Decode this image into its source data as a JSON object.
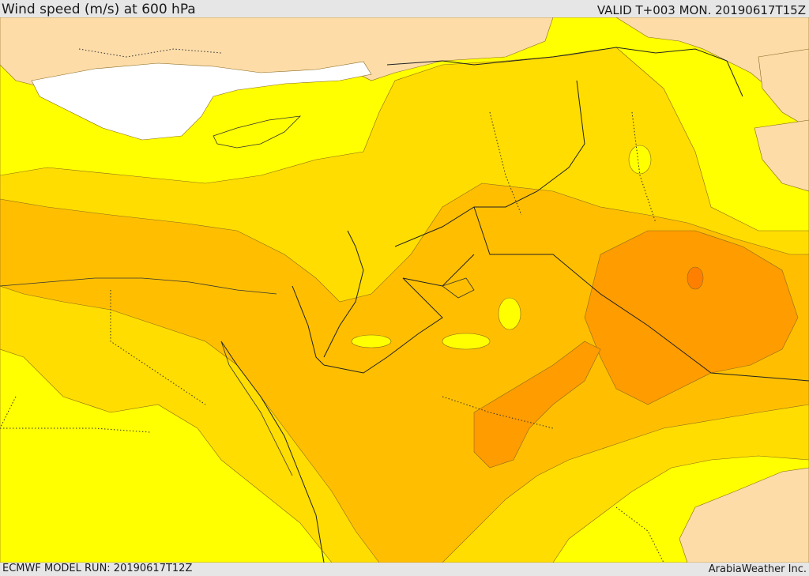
{
  "header": {
    "title": "Wind speed (m/s) at 600 hPa",
    "valid_time": "VALID T+003 MON. 20190617T15Z"
  },
  "footer": {
    "model_run": "ECMWF MODEL RUN: 20190617T12Z",
    "credit": "ArabiaWeather Inc."
  },
  "map": {
    "colors": {
      "land": "#fddca8",
      "calm": "#ffffff",
      "band_1": "#ffff00",
      "band_2": "#ffdd00",
      "band_3": "#ffbf00",
      "band_4": "#ff9c00",
      "band_5": "#ff8000"
    }
  }
}
